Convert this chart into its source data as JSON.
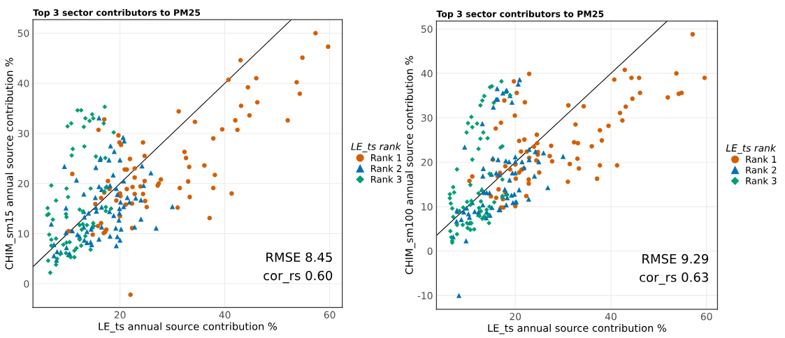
{
  "chart_data": [
    {
      "type": "scatter",
      "title": "Top 3 sector contributors to PM25",
      "xlabel": "LE_ts annual source contribution %",
      "ylabel": "CHIM_sm15 annual source contribution %",
      "legend_title": "LE_ts rank",
      "legend": "right",
      "grid": true,
      "xlim": [
        3.4,
        62.4
      ],
      "ylim": [
        -4.76,
        52.7
      ],
      "xticks": [
        20,
        40,
        60
      ],
      "yticks": [
        0,
        10,
        20,
        30,
        40,
        50
      ],
      "annotations": [
        "RMSE 8.45",
        "cor_rs 0.60"
      ],
      "series": [
        {
          "name": "Rank 1",
          "color": "#d55e00",
          "marker": "circle",
          "x": [
            57.3,
            59.7,
            43.0,
            54.8,
            40.7,
            46.0,
            44.4,
            53.7,
            54.3,
            43.1,
            46.2,
            44.7,
            42.0,
            42.4,
            52.0,
            39.5,
            31.2,
            34.3,
            37.8,
            32.3,
            32.6,
            33.2,
            36.1,
            38.1,
            33.0,
            31.4,
            37.8,
            33.3,
            41.3,
            31.0,
            37.1,
            17.0,
            15.9,
            19.7,
            19.9,
            20.2,
            24.4,
            21.9,
            24.7,
            20.9,
            21.3,
            22.8,
            10.9,
            22.8,
            17.7,
            24.7,
            27.8,
            27.4,
            27.2,
            18.0,
            21.3,
            22.4,
            23.9,
            17.0,
            24.4,
            20.0,
            20.1,
            22.8,
            16.4,
            19.3,
            24.8,
            22.3,
            21.1,
            25.1,
            15.3,
            20.0,
            16.4,
            15.8,
            22.3,
            10.2,
            17.4,
            17.2,
            16.9,
            14.8,
            22.0
          ],
          "values": [
            50.0,
            47.3,
            44.6,
            45.1,
            40.7,
            41.0,
            39.2,
            40.2,
            37.9,
            35.5,
            36.2,
            33.6,
            32.6,
            30.7,
            32.6,
            30.8,
            34.4,
            32.3,
            29.0,
            26.3,
            25.1,
            23.3,
            23.6,
            21.7,
            20.4,
            19.1,
            19.1,
            17.3,
            18.0,
            15.2,
            13.1,
            32.8,
            30.7,
            29.6,
            28.2,
            27.7,
            28.2,
            24.9,
            25.5,
            22.8,
            22.8,
            23.0,
            21.9,
            21.2,
            20.5,
            20.5,
            20.8,
            20.0,
            19.6,
            18.9,
            18.9,
            19.3,
            19.4,
            18.2,
            17.9,
            18.0,
            17.5,
            17.9,
            17.1,
            16.6,
            16.5,
            16.0,
            15.8,
            15.3,
            15.9,
            13.5,
            12.1,
            11.5,
            11.1,
            10.5,
            10.8,
            10.4,
            10.1,
            9.8,
            -2.2
          ]
        },
        {
          "name": "Rank 2",
          "color": "#0072b2",
          "marker": "triangle",
          "x": [
            16.0,
            20.6,
            20.8,
            18.2,
            18.9,
            16.3,
            16.2,
            15.4,
            17.9,
            20.0,
            9.4,
            24.2,
            25.9,
            11.7,
            18.7,
            20.7,
            16.0,
            16.5,
            17.5,
            18.1,
            19.3,
            24.5,
            13.1,
            15.3,
            19.5,
            20.1,
            21.4,
            23.0,
            21.8,
            24.0,
            15.4,
            16.5,
            15.5,
            13.1,
            14.0,
            18.0,
            18.8,
            19.9,
            19.9,
            20.7,
            9.7,
            6.9,
            13.2,
            19.8,
            24.0,
            9.7,
            10.9,
            13.1,
            14.7,
            14.5,
            16.5,
            19.2,
            20.2,
            22.8,
            26.9,
            30.0,
            7.4,
            8.0,
            8.7,
            7.4,
            7.9,
            9.8,
            10.4,
            10.2,
            11.9,
            12.3,
            13.2,
            13.7,
            14.4,
            14.6,
            16.0,
            18.1,
            19.5,
            20.0,
            19.3,
            13.7
          ],
          "values": [
            33.1,
            29.2,
            28.5,
            27.5,
            26.4,
            25.1,
            24.8,
            23.2,
            24.7,
            24.7,
            23.4,
            23.5,
            22.1,
            20.7,
            21.7,
            20.5,
            19.4,
            18.8,
            19.4,
            19.6,
            19.0,
            19.6,
            17.9,
            17.2,
            17.8,
            16.3,
            17.2,
            17.1,
            16.3,
            16.7,
            15.2,
            15.3,
            14.5,
            14.4,
            14.1,
            14.4,
            13.6,
            15.0,
            14.1,
            15.4,
            15.1,
            11.9,
            13.3,
            12.7,
            12.9,
            10.2,
            10.6,
            11.3,
            11.4,
            10.9,
            11.3,
            11.1,
            10.9,
            11.3,
            11.1,
            15.4,
            7.8,
            6.4,
            6.3,
            5.6,
            4.7,
            7.2,
            6.0,
            5.8,
            9.8,
            9.4,
            8.7,
            8.2,
            8.3,
            7.8,
            8.9,
            9.5,
            9.4,
            8.7,
            7.6,
            10.4
          ]
        },
        {
          "name": "Rank 3",
          "color": "#009e73",
          "marker": "diamond",
          "x": [
            17.1,
            11.9,
            12.6,
            14.7,
            13.4,
            14.9,
            14.2,
            10.7,
            10.0,
            13.1,
            16.9,
            18.8,
            11.0,
            13.2,
            10.8,
            15.4,
            17.2,
            6.9,
            9.8,
            14.4,
            10.1,
            7.8,
            17.3,
            17.0,
            6.2,
            6.4,
            6.1,
            7.2,
            9.7,
            9.8,
            12.3,
            12.9,
            17.3,
            17.3,
            18.3,
            14.9,
            15.0,
            12.3,
            12.9,
            12.7,
            13.7,
            6.5,
            7.8,
            6.9,
            6.9,
            9.2,
            9.8,
            10.4,
            12.3,
            13.4,
            12.6,
            11.7,
            11.3,
            9.7,
            10.6,
            11.3,
            8.6,
            8.0,
            6.3,
            7.8,
            6.7,
            14.4
          ],
          "values": [
            35.3,
            34.6,
            34.6,
            33.8,
            33.0,
            33.0,
            32.5,
            32.0,
            31.4,
            31.3,
            32.0,
            30.2,
            26.9,
            27.4,
            25.6,
            25.4,
            25.1,
            19.6,
            19.0,
            19.0,
            17.3,
            16.6,
            19.2,
            18.4,
            15.1,
            13.9,
            13.7,
            12.8,
            13.9,
            13.3,
            14.8,
            14.4,
            15.3,
            14.5,
            15.0,
            12.1,
            11.5,
            11.7,
            11.9,
            10.8,
            11.7,
            9.8,
            9.0,
            8.8,
            7.6,
            7.8,
            8.2,
            8.3,
            8.8,
            9.5,
            7.6,
            7.1,
            6.6,
            6.1,
            5.3,
            5.3,
            5.9,
            5.0,
            4.6,
            3.8,
            2.2,
            6.8
          ]
        },
        {
          "type": "line",
          "color": "#000000",
          "x": [
            3.4,
            52.7
          ],
          "values": [
            3.4,
            52.7
          ]
        }
      ]
    },
    {
      "type": "scatter",
      "title": "Top 3 sector contributors to PM25",
      "xlabel": "LE_ts annual source contribution %",
      "ylabel": "CHIM_sm100 annual source contribution %",
      "legend_title": "LE_ts rank",
      "legend": "right",
      "grid": true,
      "xlim": [
        3.5,
        62.3
      ],
      "ylim": [
        -13.1,
        51.8
      ],
      "xticks": [
        20,
        40,
        60
      ],
      "yticks": [
        -10,
        0,
        10,
        20,
        30,
        40,
        50
      ],
      "annotations": [
        "RMSE 9.29",
        "cor_rs 0.63"
      ],
      "series": [
        {
          "name": "Rank 1",
          "color": "#d55e00",
          "marker": "circle",
          "x": [
            57.1,
            42.9,
            53.7,
            40.7,
            44.3,
            45.9,
            59.6,
            46.1,
            54.2,
            54.8,
            51.9,
            44.5,
            43.1,
            41.9,
            42.4,
            39.5,
            37.7,
            38.1,
            36.0,
            32.3,
            33.1,
            32.6,
            31.1,
            34.3,
            27.5,
            27.2,
            27.7,
            33.0,
            31.4,
            33.3,
            37.7,
            41.3,
            37.1,
            31.0,
            22.9,
            19.7,
            20.3,
            22.0,
            17.7,
            19.9,
            17.0,
            15.9,
            24.5,
            20.8,
            21.9,
            23.9,
            24.6,
            21.2,
            22.4,
            24.7,
            24.7,
            24.4,
            22.9,
            15.3,
            17.9,
            18.9,
            20.0,
            21.3,
            20.8,
            21.8,
            20.1,
            25.0,
            22.8,
            22.8,
            16.8,
            16.3,
            11.0,
            10.4,
            16.5,
            17.9,
            14.9,
            16.0,
            17.4,
            22.3,
            17.0,
            17.5,
            20.0
          ],
          "values": [
            48.8,
            40.8,
            40.0,
            38.6,
            39.0,
            39.0,
            39.0,
            35.6,
            35.4,
            35.6,
            34.6,
            34.3,
            32.5,
            31.1,
            29.4,
            28.2,
            27.2,
            24.9,
            23.6,
            24.5,
            24.3,
            28.5,
            32.8,
            32.6,
            23.7,
            21.4,
            20.2,
            20.8,
            19.6,
            18.6,
            19.3,
            19.3,
            16.3,
            15.6,
            39.9,
            38.2,
            35.6,
            33.5,
            33.9,
            30.5,
            28.9,
            27.6,
            26.2,
            24.8,
            25.1,
            23.5,
            24.3,
            22.4,
            22.4,
            22.3,
            21.7,
            20.4,
            21.0,
            20.6,
            19.1,
            18.4,
            19.5,
            18.3,
            17.7,
            18.6,
            16.3,
            17.7,
            16.1,
            15.2,
            17.6,
            16.8,
            16.8,
            15.8,
            13.9,
            13.2,
            12.3,
            12.0,
            11.7,
            12.4,
            9.8,
            9.8,
            10.1
          ]
        },
        {
          "name": "Rank 2",
          "color": "#0072b2",
          "marker": "triangle",
          "x": [
            20.9,
            20.6,
            16.2,
            17.4,
            18.0,
            18.2,
            18.9,
            16.0,
            16.3,
            19.3,
            15.4,
            13.1,
            9.4,
            22.9,
            24.2,
            25.9,
            30.0,
            15.3,
            16.4,
            18.0,
            18.7,
            20.0,
            20.0,
            21.4,
            22.9,
            24.9,
            13.3,
            15.0,
            16.0,
            16.7,
            19.4,
            20.0,
            21.8,
            13.2,
            18.8,
            24.0,
            26.8,
            20.8,
            17.8,
            13.0,
            13.5,
            14.0,
            14.6,
            18.1,
            19.2,
            19.8,
            18.3,
            22.8,
            19.5,
            20.0,
            20.2,
            18.1,
            11.0,
            13.2,
            9.8,
            9.2,
            7.8,
            7.9,
            10.2,
            10.4,
            11.5,
            12.3,
            14.0,
            14.5,
            14.7,
            13.9,
            16.6,
            16.8,
            12.3,
            8.7,
            7.7,
            10.5,
            7.0,
            9.7,
            8.2,
            15.1
          ],
          "values": [
            38.6,
            37.6,
            36.6,
            35.6,
            36.0,
            36.2,
            35.0,
            34.2,
            34.2,
            33.5,
            32.4,
            28.7,
            23.4,
            22.9,
            22.4,
            22.1,
            21.3,
            20.9,
            20.6,
            20.3,
            20.1,
            20.1,
            21.2,
            20.1,
            20.6,
            20.1,
            18.6,
            17.3,
            17.6,
            17.2,
            17.6,
            17.6,
            18.8,
            16.9,
            16.0,
            16.9,
            14.3,
            13.8,
            13.9,
            13.9,
            13.2,
            13.2,
            13.1,
            12.9,
            12.6,
            12.8,
            12.0,
            11.7,
            10.9,
            11.0,
            11.1,
            10.4,
            10.9,
            10.4,
            9.7,
            8.8,
            9.2,
            8.9,
            8.4,
            7.6,
            8.9,
            8.8,
            8.8,
            8.1,
            8.1,
            7.5,
            9.3,
            9.3,
            8.3,
            7.1,
            6.7,
            6.4,
            3.2,
            2.3,
            -10.0,
            9.8
          ]
        },
        {
          "name": "Rank 3",
          "color": "#009e73",
          "marker": "diamond",
          "x": [
            17.1,
            14.7,
            15.1,
            13.5,
            13.1,
            18.9,
            15.5,
            12.7,
            10.8,
            10.1,
            12.0,
            11.0,
            9.8,
            13.3,
            12.7,
            14.2,
            12.3,
            16.9,
            17.3,
            11.0,
            7.8,
            14.6,
            17.3,
            7.0,
            7.2,
            6.3,
            6.3,
            6.5,
            10.6,
            12.3,
            13.0,
            17.3,
            17.3,
            18.3,
            15.6,
            12.8,
            14.6,
            6.8,
            7.0,
            8.3,
            9.1,
            9.9,
            10.8,
            10.6,
            12.4,
            12.8,
            12.5,
            13.1,
            13.5,
            14.0,
            14.4,
            9.9,
            10.0,
            10.8,
            10.6,
            11.4,
            14.5,
            7.8,
            7.8,
            6.4,
            6.6,
            6.8,
            6.8,
            9.0
          ],
          "values": [
            38.2,
            36.9,
            37.1,
            34.9,
            33.9,
            35.1,
            33.4,
            32.8,
            30.2,
            28.8,
            28.7,
            27.9,
            26.7,
            26.7,
            25.3,
            25.4,
            23.0,
            23.3,
            23.6,
            20.6,
            18.4,
            17.4,
            16.1,
            14.4,
            13.2,
            12.8,
            11.9,
            10.7,
            14.9,
            13.0,
            13.7,
            12.4,
            12.0,
            12.7,
            11.0,
            11.2,
            10.0,
            9.6,
            7.7,
            9.0,
            9.8,
            11.1,
            11.3,
            10.4,
            9.7,
            9.0,
            7.9,
            7.3,
            7.8,
            9.3,
            8.1,
            6.3,
            5.2,
            6.3,
            4.8,
            4.9,
            6.3,
            5.9,
            3.8,
            4.5,
            3.1,
            2.3,
            1.9,
            5.9
          ]
        },
        {
          "type": "line",
          "color": "#000000",
          "x": [
            3.5,
            51.8
          ],
          "values": [
            3.5,
            51.8
          ]
        }
      ]
    }
  ]
}
